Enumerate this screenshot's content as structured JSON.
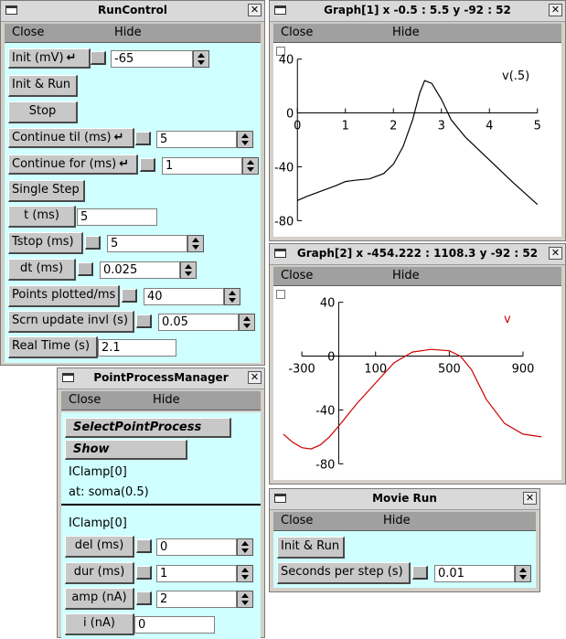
{
  "run_control": {
    "title": "RunControl",
    "menu": [
      "Close",
      "Hide"
    ],
    "init_label": "Init (mV)",
    "init_value": "-65",
    "init_run_label": "Init & Run",
    "stop_label": "Stop",
    "continue_til_label": "Continue til (ms)",
    "continue_til_value": "5",
    "continue_for_label": "Continue for (ms)",
    "continue_for_value": "1",
    "single_step_label": "Single Step",
    "t_label": "t (ms)",
    "t_value": "5",
    "tstop_label": "Tstop (ms)",
    "tstop_value": "5",
    "dt_label": "dt (ms)",
    "dt_value": "0.025",
    "points_label": "Points plotted/ms",
    "points_value": "40",
    "scrn_label": "Scrn update invl (s)",
    "scrn_value": "0.05",
    "realtime_label": "Real Time (s)",
    "realtime_value": "2.1"
  },
  "graph1": {
    "title": "Graph[1]  x -0.5 : 5.5  y -92 : 52",
    "menu": [
      "Close",
      "Hide"
    ],
    "x_ticks": [
      "0",
      "1",
      "2",
      "3",
      "4",
      "5"
    ],
    "y_ticks": [
      "40",
      "0",
      "-40",
      "-80"
    ],
    "series_label": "v(.5)",
    "line_color": "#000000"
  },
  "graph2": {
    "title": "Graph[2]  x -454.222 : 1108.3  y -92 : 52",
    "menu": [
      "Close",
      "Hide"
    ],
    "x_ticks": [
      "-300",
      "100",
      "500",
      "900"
    ],
    "y_ticks": [
      "40",
      "0",
      "-40",
      "-80"
    ],
    "series_label": "v",
    "line_color": "#cc0000"
  },
  "ppm": {
    "title": "PointProcessManager",
    "menu": [
      "Close",
      "Hide"
    ],
    "select_label": "SelectPointProcess",
    "show_label": "Show",
    "iclamp_label": "IClamp[0]",
    "location_label": "at: soma(0.5)",
    "iclamp_label2": "IClamp[0]",
    "del_label": "del (ms)",
    "del_value": "0",
    "dur_label": "dur (ms)",
    "dur_value": "1",
    "amp_label": "amp (nA)",
    "amp_value": "2",
    "i_label": "i (nA)",
    "i_value": "0"
  },
  "movie_run": {
    "title": "Movie Run",
    "menu": [
      "Close",
      "Hide"
    ],
    "init_run_label": "Init & Run",
    "seconds_label": "Seconds per step (s)",
    "seconds_value": "0.01"
  },
  "chart_data": [
    {
      "type": "line",
      "xlim": [
        -0.5,
        5.5
      ],
      "ylim": [
        -92,
        52
      ],
      "series": [
        {
          "name": "v(.5)",
          "x": [
            0,
            0.2,
            0.5,
            0.8,
            1.0,
            1.2,
            1.5,
            1.8,
            2.0,
            2.2,
            2.4,
            2.55,
            2.65,
            2.8,
            3.0,
            3.2,
            3.5,
            4.0,
            4.5,
            5.0
          ],
          "y": [
            -65,
            -62,
            -58,
            -54,
            -51,
            -50,
            -49,
            -45,
            -38,
            -25,
            -5,
            15,
            24,
            22,
            10,
            -5,
            -18,
            -35,
            -52,
            -68
          ]
        }
      ]
    },
    {
      "type": "line",
      "xlim": [
        -454.222,
        1108.3
      ],
      "ylim": [
        -92,
        52
      ],
      "series": [
        {
          "name": "v",
          "x": [
            -400,
            -350,
            -300,
            -250,
            -200,
            -150,
            -100,
            0,
            100,
            200,
            300,
            400,
            500,
            560,
            620,
            700,
            800,
            900,
            1000
          ],
          "y": [
            -58,
            -64,
            -68,
            -69,
            -66,
            -60,
            -52,
            -35,
            -20,
            -5,
            3,
            5,
            4,
            0,
            -10,
            -32,
            -50,
            -58,
            -60
          ]
        }
      ]
    }
  ]
}
